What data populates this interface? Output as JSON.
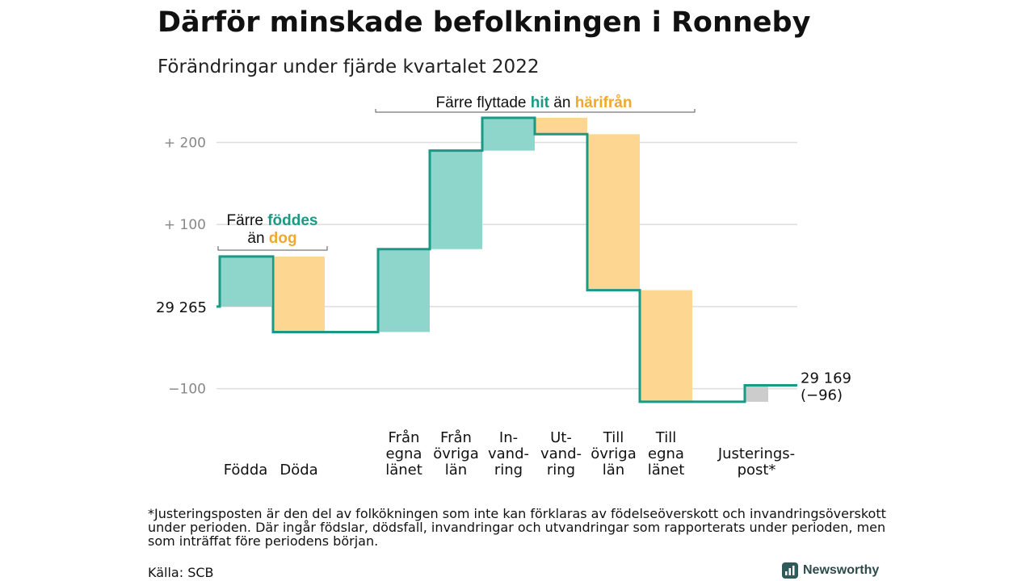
{
  "title": "Därför minskade befolkningen i Ronneby",
  "subtitle": "Förändringar under fjärde kvartalet 2022",
  "footnote": "*Justeringsposten är den del av folkökningen som inte kan förklaras av födelseöverskott och invandringsöverskott under perioden. Där ingår födslar, dödsfall, invandringar och utvandringar som rapporterats under perioden, men som inträffat före periodens början.",
  "source": "Källa: SCB",
  "brand": "Newsworthy",
  "colors": {
    "positive": "#8ed6cb",
    "negative": "#fdd792",
    "adjustment": "#cccccc",
    "line": "#1a9a85",
    "hit": "#1a9a85",
    "harifran": "#f0a830",
    "grid": "#dddddd",
    "tick": "#888888"
  },
  "annotations": {
    "births_deaths": {
      "line1_prefix": "Färre ",
      "line1_highlight": "föddes",
      "line2_prefix": "än ",
      "line2_highlight": "dog"
    },
    "migration": {
      "prefix": "Färre flyttade ",
      "highlight1": "hit",
      "middle": " än ",
      "highlight2": "härifrån"
    }
  },
  "chart_data": {
    "type": "waterfall",
    "baseline": 29265,
    "baseline_label": "29 265",
    "ylim": [
      -122,
      228
    ],
    "yticks": [
      {
        "value": 200,
        "label": "+ 200"
      },
      {
        "value": 100,
        "label": "+ 100"
      },
      {
        "value": -100,
        "label": "−100"
      }
    ],
    "grid": true,
    "steps": [
      {
        "label": [
          "Födda"
        ],
        "change": 61,
        "kind": "positive"
      },
      {
        "label": [
          "Döda"
        ],
        "change": -92,
        "kind": "negative"
      },
      {
        "label": [
          "Från",
          "egna",
          "länet"
        ],
        "change": 101,
        "kind": "positive"
      },
      {
        "label": [
          "Från",
          "övriga",
          "län"
        ],
        "change": 120,
        "kind": "positive"
      },
      {
        "label": [
          "In-",
          "vand-",
          "ring"
        ],
        "change": 40,
        "kind": "positive"
      },
      {
        "label": [
          "Ut-",
          "vand-",
          "ring"
        ],
        "change": -20,
        "kind": "negative"
      },
      {
        "label": [
          "Till",
          "övriga",
          "län"
        ],
        "change": -190,
        "kind": "negative"
      },
      {
        "label": [
          "Till",
          "egna",
          "länet"
        ],
        "change": -136,
        "kind": "negative"
      },
      {
        "label": [
          "Justerings-",
          "post*"
        ],
        "change": 20,
        "kind": "adjustment"
      }
    ],
    "end_label": "29 169",
    "end_change_label": "(−96)"
  }
}
